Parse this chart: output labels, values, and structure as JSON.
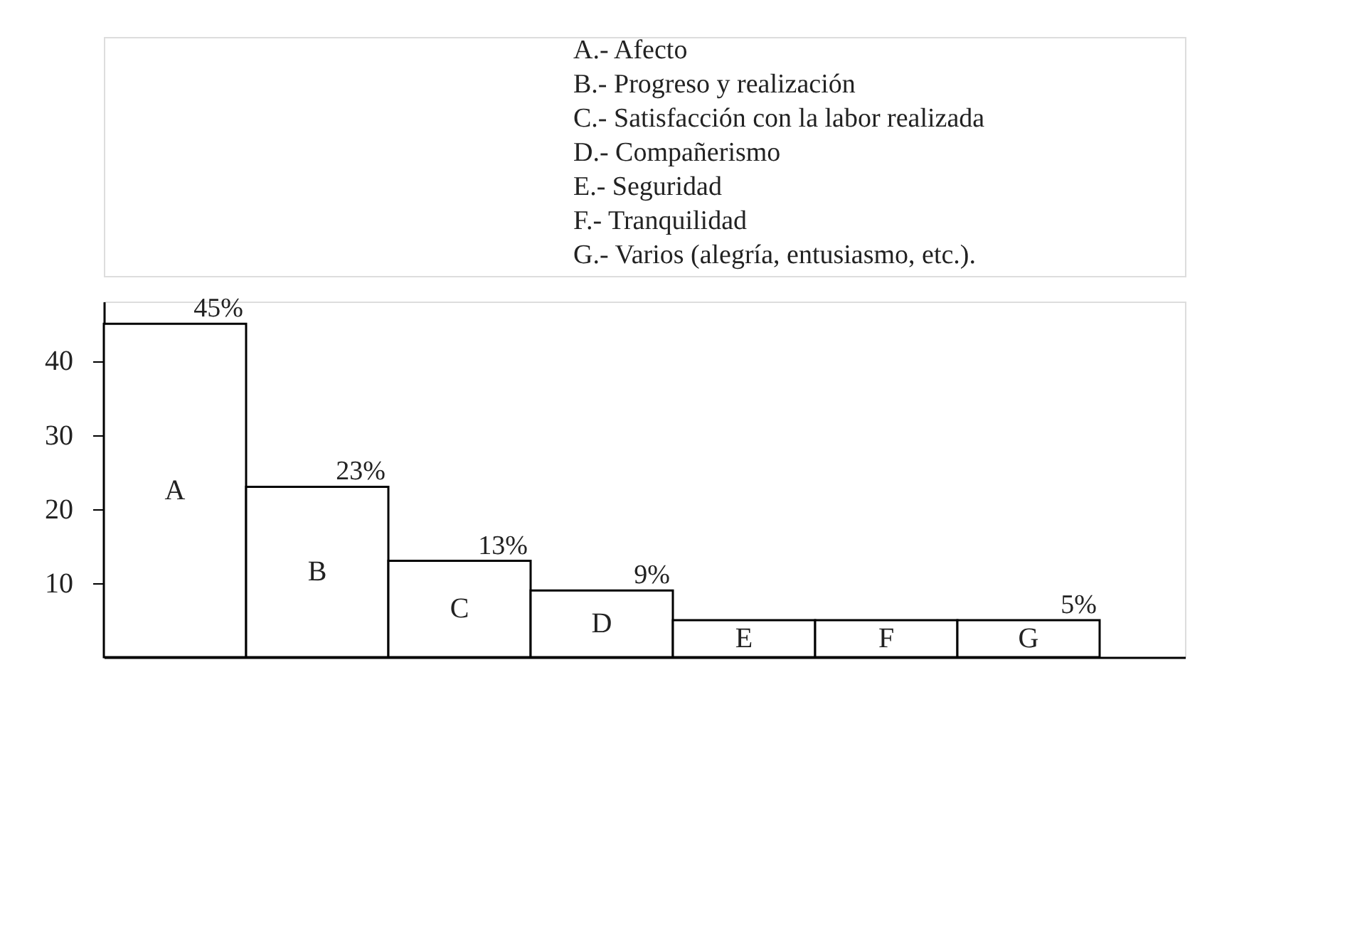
{
  "chart_data": {
    "type": "bar",
    "categories": [
      "A",
      "B",
      "C",
      "D",
      "E",
      "F",
      "G"
    ],
    "values": [
      45,
      23,
      13,
      9,
      5,
      5,
      5
    ],
    "value_labels": [
      "45%",
      "23%",
      "13%",
      "9%",
      null,
      null,
      "5%"
    ],
    "color": "#ffffff",
    "ylim": [
      0,
      48
    ],
    "yticks": [
      10,
      20,
      30,
      40
    ],
    "grid": false,
    "annotations": [
      "A.- Afecto",
      "B.- Progreso y realización",
      "C.- Satisfacción con la labor realizada",
      "D.- Compañerismo",
      "E.- Seguridad",
      "F.- Tranquilidad",
      "G.- Varios (alegría, entusiasmo, etc.)."
    ]
  }
}
